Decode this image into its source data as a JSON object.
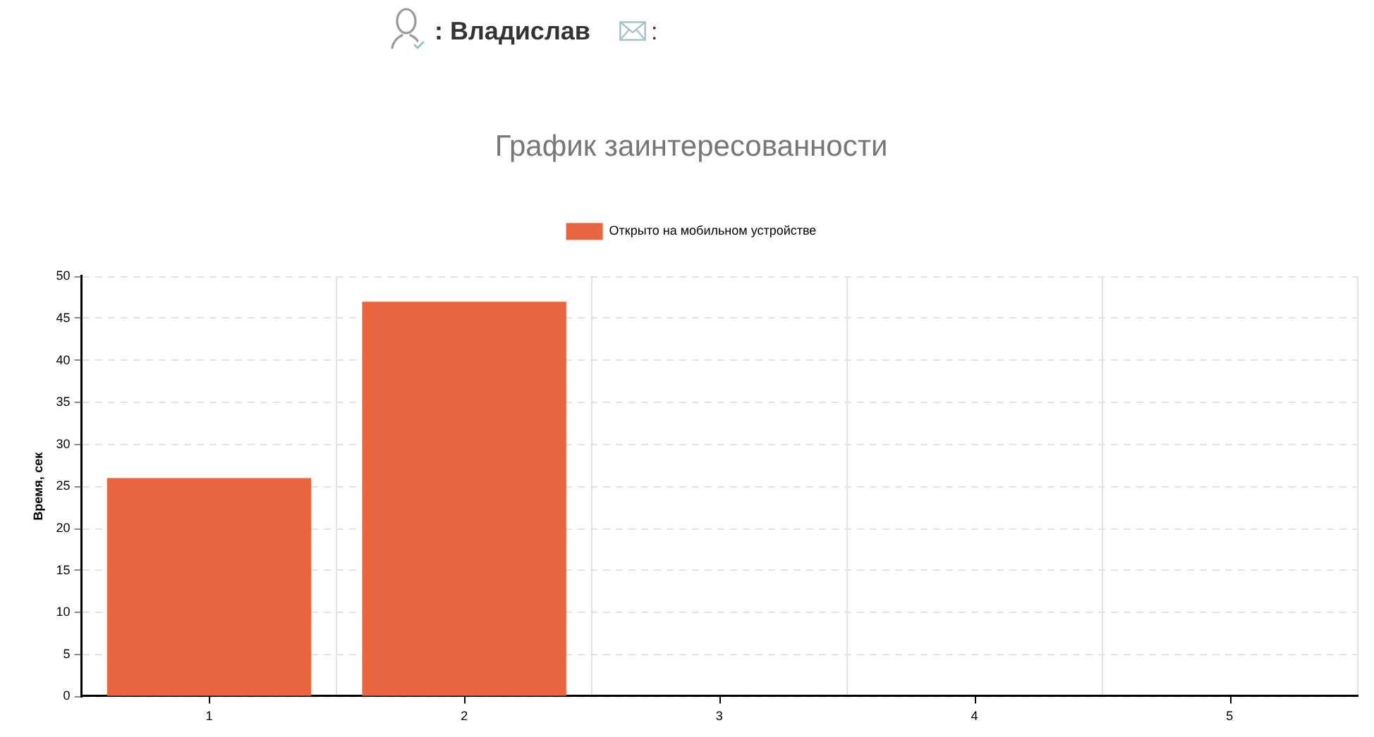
{
  "chart_data": {
    "type": "bar",
    "title": "График заинтересованности",
    "ylabel": "Время, сек",
    "categories": [
      "1",
      "2",
      "3",
      "4",
      "5"
    ],
    "series": [
      {
        "name": "Открыто на мобильном устройстве",
        "color": "#e86540",
        "values": [
          26,
          47,
          0,
          0,
          0
        ]
      }
    ],
    "ylim": [
      0,
      50
    ],
    "yticks": [
      0,
      5,
      10,
      15,
      20,
      25,
      30,
      35,
      40,
      45,
      50
    ],
    "grid": true,
    "legend": "top",
    "annotations": [
      ": Владислав",
      ":"
    ]
  }
}
